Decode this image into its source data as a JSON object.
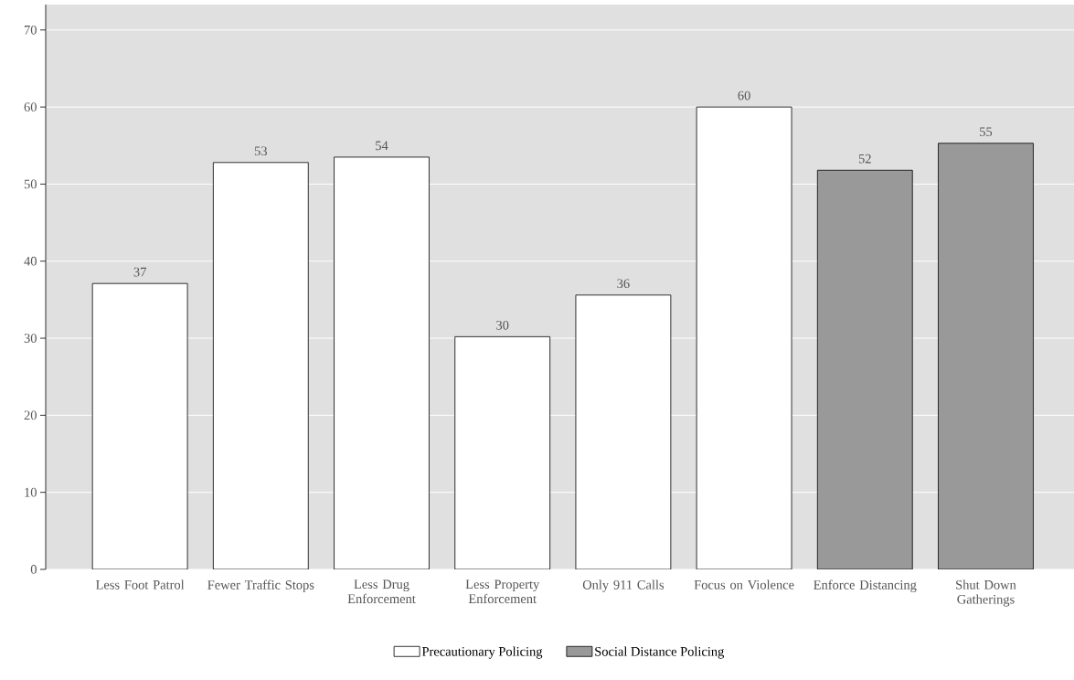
{
  "chart_data": {
    "type": "bar",
    "categories": [
      "Less Foot Patrol",
      "Fewer Traffic Stops",
      "Less Drug Enforcement",
      "Less Property Enforcement",
      "Only 911 Calls",
      "Focus on Violence",
      "Enforce Distancing",
      "Shut Down Gatherings"
    ],
    "series": [
      {
        "name": "Precautionary Policing",
        "color": "#ffffff",
        "values": [
          37.1,
          52.8,
          53.5,
          30.2,
          35.6,
          60,
          null,
          null
        ],
        "value_labels": [
          "37",
          "53",
          "54",
          "30",
          "36",
          "60",
          null,
          null
        ]
      },
      {
        "name": "Social Distance Policing",
        "color": "#999999",
        "values": [
          null,
          null,
          null,
          null,
          null,
          null,
          51.8,
          55.3
        ],
        "value_labels": [
          null,
          null,
          null,
          null,
          null,
          null,
          "52",
          "55"
        ]
      }
    ],
    "ylim": [
      0,
      73.3
    ],
    "yticks": [
      0,
      10,
      20,
      30,
      40,
      50,
      60,
      70
    ],
    "grid": "y",
    "legend": "bottom"
  }
}
